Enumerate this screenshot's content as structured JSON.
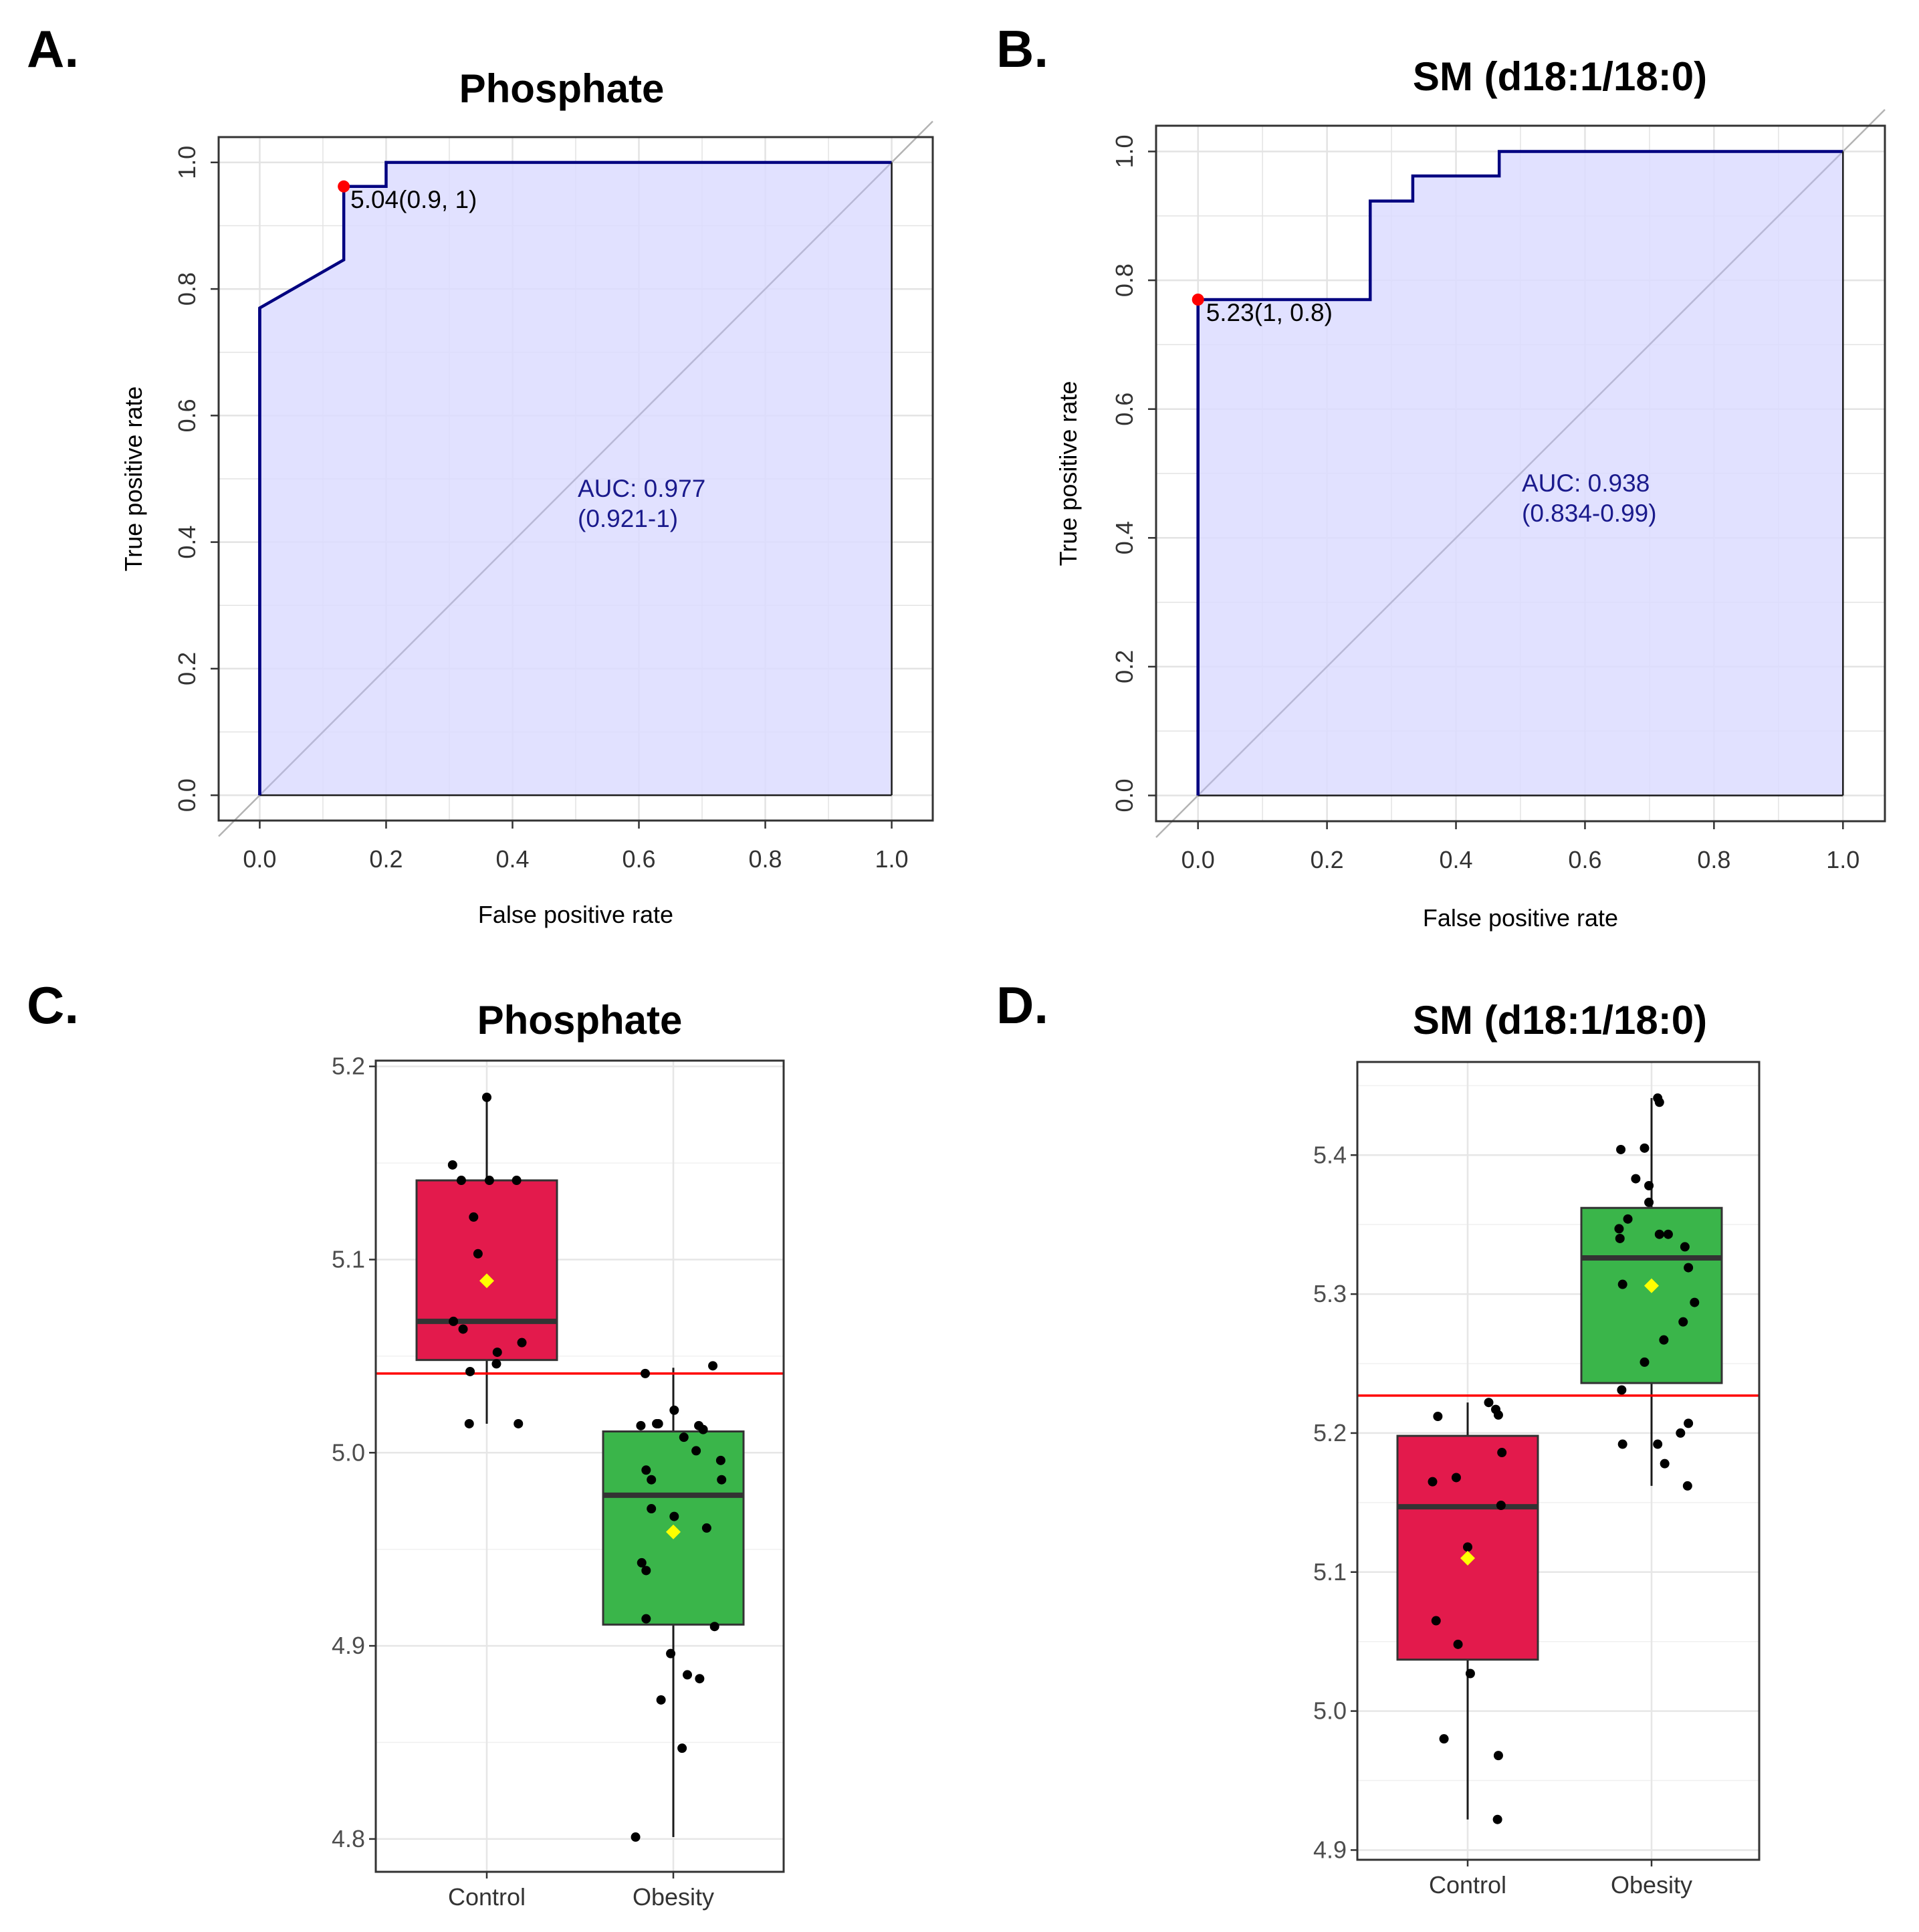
{
  "panels": {
    "A": {
      "letter": "A."
    },
    "B": {
      "letter": "B."
    },
    "C": {
      "letter": "C."
    },
    "D": {
      "letter": "D."
    }
  },
  "colors": {
    "roc_line": "#000080",
    "roc_fill": "#dcdcff",
    "diagonal": "#b3b3b3",
    "cutoff_point": "#ff0000",
    "control_box": "#e31a4c",
    "obesity_box": "#3ab54a",
    "threshold_line": "#ff0000",
    "mean_marker": "#ffff00",
    "grid": "#e0e0e0"
  },
  "chart_data": [
    {
      "id": "A",
      "type": "line",
      "subtype": "roc",
      "title": "Phosphate",
      "xlabel": "False positive rate",
      "ylabel": "True positive rate",
      "xlim": [
        -0.065,
        1.065
      ],
      "ylim": [
        -0.04,
        1.04
      ],
      "xticks": [
        "0.0",
        "0.2",
        "0.4",
        "0.6",
        "0.8",
        "1.0"
      ],
      "yticks": [
        "0.0",
        "0.2",
        "0.4",
        "0.6",
        "0.8",
        "1.0"
      ],
      "x": [
        0,
        0,
        0.133,
        0.133,
        0.2,
        0.2,
        1.0,
        1.0
      ],
      "y": [
        0,
        0.77,
        0.846,
        0.962,
        0.962,
        1.0,
        1.0,
        0
      ],
      "cutoff": {
        "fpr": 0.133,
        "tpr": 0.962,
        "label": "5.04(0.9, 1)"
      },
      "auc_label": "AUC: 0.977",
      "ci_label": "(0.921-1)"
    },
    {
      "id": "B",
      "type": "line",
      "subtype": "roc",
      "title": "SM (d18:1/18:0)",
      "xlabel": "False positive rate",
      "ylabel": "True positive rate",
      "xlim": [
        -0.065,
        1.065
      ],
      "ylim": [
        -0.04,
        1.04
      ],
      "xticks": [
        "0.0",
        "0.2",
        "0.4",
        "0.6",
        "0.8",
        "1.0"
      ],
      "yticks": [
        "0.0",
        "0.2",
        "0.4",
        "0.6",
        "0.8",
        "1.0"
      ],
      "x": [
        0,
        0,
        0.267,
        0.267,
        0.333,
        0.333,
        0.467,
        0.467,
        1.0,
        1.0
      ],
      "y": [
        0,
        0.77,
        0.77,
        0.923,
        0.923,
        0.962,
        0.962,
        1.0,
        1.0,
        0
      ],
      "cutoff": {
        "fpr": 0.0,
        "tpr": 0.77,
        "label": "5.23(1, 0.8)"
      },
      "auc_label": "AUC: 0.938",
      "ci_label": "(0.834-0.99)"
    },
    {
      "id": "C",
      "type": "box",
      "title": "Phosphate",
      "categories": [
        "Control",
        "Obesity"
      ],
      "ylim": [
        4.783,
        5.203
      ],
      "yticks": [
        "4.8",
        "4.9",
        "5.0",
        "5.1",
        "5.2"
      ],
      "threshold": 5.041,
      "boxes": [
        {
          "name": "Control",
          "q1": 5.048,
          "median": 5.068,
          "q3": 5.141,
          "whisker_low": 5.015,
          "whisker_high": 5.184,
          "mean": 5.089
        },
        {
          "name": "Obesity",
          "q1": 4.911,
          "median": 4.978,
          "q3": 5.011,
          "whisker_low": 4.801,
          "whisker_high": 5.044,
          "mean": 4.959
        }
      ],
      "points": [
        [
          [
            -0.39,
            5.149
          ],
          [
            -0.29,
            5.141
          ],
          [
            -0.15,
            5.122
          ],
          [
            0.03,
            5.141
          ],
          [
            -0.1,
            5.103
          ],
          [
            0.34,
            5.141
          ],
          [
            0.0,
            5.184
          ],
          [
            -0.38,
            5.068
          ],
          [
            -0.27,
            5.064
          ],
          [
            0.12,
            5.052
          ],
          [
            0.4,
            5.057
          ],
          [
            0.11,
            5.046
          ],
          [
            -0.19,
            5.042
          ],
          [
            0.36,
            5.015
          ],
          [
            -0.2,
            5.015
          ]
        ],
        [
          [
            -0.32,
            5.041
          ],
          [
            -0.17,
            5.015
          ],
          [
            -0.19,
            5.015
          ],
          [
            -0.37,
            5.014
          ],
          [
            0.01,
            5.022
          ],
          [
            0.12,
            5.008
          ],
          [
            -0.31,
            4.991
          ],
          [
            -0.25,
            4.986
          ],
          [
            0.26,
            5.001
          ],
          [
            0.29,
            5.014
          ],
          [
            0.34,
            5.012
          ],
          [
            0.45,
            5.045
          ],
          [
            0.54,
            4.996
          ],
          [
            0.55,
            4.986
          ],
          [
            -0.36,
            4.943
          ],
          [
            -0.25,
            4.971
          ],
          [
            0.01,
            4.967
          ],
          [
            0.38,
            4.961
          ],
          [
            0.47,
            4.91
          ],
          [
            -0.31,
            4.914
          ],
          [
            -0.31,
            4.939
          ],
          [
            -0.03,
            4.896
          ],
          [
            0.16,
            4.885
          ],
          [
            0.3,
            4.883
          ],
          [
            -0.14,
            4.872
          ],
          [
            0.1,
            4.847
          ],
          [
            -0.43,
            4.801
          ]
        ]
      ]
    },
    {
      "id": "D",
      "type": "box",
      "title": "SM (d18:1/18:0)",
      "categories": [
        "Control",
        "Obesity"
      ],
      "ylim": [
        4.893,
        5.467
      ],
      "yticks": [
        "4.9",
        "5.0",
        "5.1",
        "5.2",
        "5.3",
        "5.4"
      ],
      "threshold": 5.227,
      "boxes": [
        {
          "name": "Control",
          "q1": 5.037,
          "median": 5.147,
          "q3": 5.198,
          "whisker_low": 4.922,
          "whisker_high": 5.222,
          "mean": 5.11
        },
        {
          "name": "Obesity",
          "q1": 5.236,
          "median": 5.326,
          "q3": 5.362,
          "whisker_low": 5.162,
          "whisker_high": 5.441,
          "mean": 5.306
        }
      ],
      "points": [
        [
          [
            -0.4,
            5.165
          ],
          [
            -0.34,
            5.212
          ],
          [
            -0.13,
            5.168
          ],
          [
            0.24,
            5.222
          ],
          [
            0.32,
            5.217
          ],
          [
            0.35,
            5.213
          ],
          [
            0.39,
            5.186
          ],
          [
            0.38,
            5.148
          ],
          [
            0.0,
            5.118
          ],
          [
            -0.36,
            5.065
          ],
          [
            -0.11,
            5.048
          ],
          [
            0.03,
            5.027
          ],
          [
            -0.27,
            4.98
          ],
          [
            0.35,
            4.968
          ],
          [
            0.34,
            4.922
          ]
        ],
        [
          [
            -0.35,
            5.404
          ],
          [
            -0.18,
            5.383
          ],
          [
            -0.03,
            5.378
          ],
          [
            -0.08,
            5.405
          ],
          [
            0.07,
            5.441
          ],
          [
            0.09,
            5.438
          ],
          [
            -0.37,
            5.347
          ],
          [
            -0.36,
            5.34
          ],
          [
            -0.27,
            5.354
          ],
          [
            -0.03,
            5.366
          ],
          [
            0.09,
            5.343
          ],
          [
            0.19,
            5.343
          ],
          [
            0.38,
            5.334
          ],
          [
            0.42,
            5.319
          ],
          [
            -0.33,
            5.307
          ],
          [
            0.49,
            5.294
          ],
          [
            0.36,
            5.28
          ],
          [
            0.14,
            5.267
          ],
          [
            -0.08,
            5.251
          ],
          [
            -0.34,
            5.231
          ],
          [
            -0.33,
            5.192
          ],
          [
            0.07,
            5.192
          ],
          [
            0.33,
            5.2
          ],
          [
            0.42,
            5.207
          ],
          [
            0.15,
            5.178
          ],
          [
            0.41,
            5.162
          ]
        ]
      ]
    }
  ]
}
